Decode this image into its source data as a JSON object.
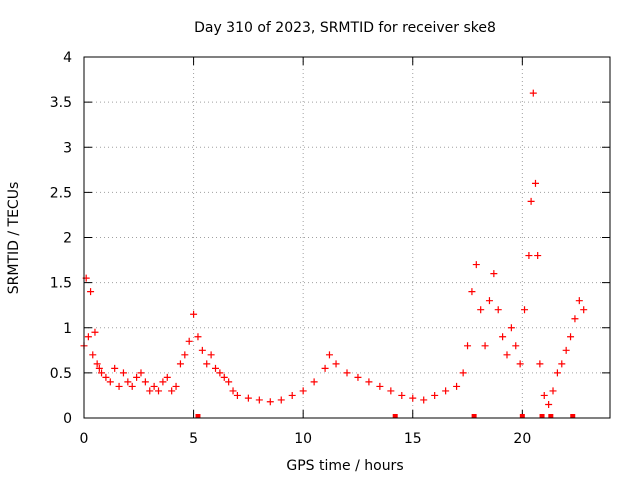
{
  "chart_data": {
    "type": "scatter",
    "title": "Day 310 of 2023, SRMTID for receiver ske8",
    "xlabel": "GPS time / hours",
    "ylabel": "SRMTID / TECUs",
    "xlim": [
      0,
      24
    ],
    "ylim": [
      0,
      4
    ],
    "x_ticks": [
      "0",
      "5",
      "10",
      "15",
      "20"
    ],
    "y_ticks": [
      "0",
      "0.5",
      "1",
      "1.5",
      "2",
      "2.5",
      "3",
      "3.5",
      "4"
    ],
    "grid": true,
    "marker": "+",
    "marker_color": "#ff0000",
    "series": [
      {
        "name": "SRMTID",
        "x": [
          0.0,
          0.1,
          0.2,
          0.3,
          0.4,
          0.5,
          0.6,
          0.7,
          0.8,
          1.0,
          1.2,
          1.4,
          1.6,
          1.8,
          2.0,
          2.2,
          2.4,
          2.6,
          2.8,
          3.0,
          3.2,
          3.4,
          3.6,
          3.8,
          4.0,
          4.2,
          4.4,
          4.6,
          4.8,
          5.0,
          5.2,
          5.4,
          5.6,
          5.8,
          6.0,
          6.2,
          6.4,
          6.6,
          6.8,
          7.0,
          7.5,
          8.0,
          8.5,
          9.0,
          9.5,
          10.0,
          10.5,
          11.0,
          11.2,
          11.5,
          12.0,
          12.5,
          13.0,
          13.5,
          14.0,
          14.5,
          15.0,
          15.5,
          16.0,
          16.5,
          17.0,
          17.3,
          17.5,
          17.7,
          17.9,
          18.1,
          18.3,
          18.5,
          18.7,
          18.9,
          19.1,
          19.3,
          19.5,
          19.7,
          19.9,
          20.1,
          20.3,
          20.4,
          20.5,
          20.6,
          20.7,
          20.8,
          21.0,
          21.2,
          21.4,
          21.6,
          21.8,
          22.0,
          22.2,
          22.4,
          22.6,
          22.8
        ],
        "y": [
          0.8,
          1.55,
          0.9,
          1.4,
          0.7,
          0.95,
          0.6,
          0.55,
          0.5,
          0.45,
          0.4,
          0.55,
          0.35,
          0.5,
          0.4,
          0.35,
          0.45,
          0.5,
          0.4,
          0.3,
          0.35,
          0.3,
          0.4,
          0.45,
          0.3,
          0.35,
          0.6,
          0.7,
          0.85,
          1.15,
          0.9,
          0.75,
          0.6,
          0.7,
          0.55,
          0.5,
          0.45,
          0.4,
          0.3,
          0.25,
          0.22,
          0.2,
          0.18,
          0.2,
          0.25,
          0.3,
          0.4,
          0.55,
          0.7,
          0.6,
          0.5,
          0.45,
          0.4,
          0.35,
          0.3,
          0.25,
          0.22,
          0.2,
          0.25,
          0.3,
          0.35,
          0.5,
          0.8,
          1.4,
          1.7,
          1.2,
          0.8,
          1.3,
          1.6,
          1.2,
          0.9,
          0.7,
          1.0,
          0.8,
          0.6,
          1.2,
          1.8,
          2.4,
          3.6,
          2.6,
          1.8,
          0.6,
          0.25,
          0.15,
          0.3,
          0.5,
          0.6,
          0.75,
          0.9,
          1.1,
          1.3,
          1.2
        ],
        "zeros_x": [
          5.2,
          14.2,
          17.8,
          20.0,
          20.9,
          21.3,
          22.3
        ]
      }
    ]
  }
}
